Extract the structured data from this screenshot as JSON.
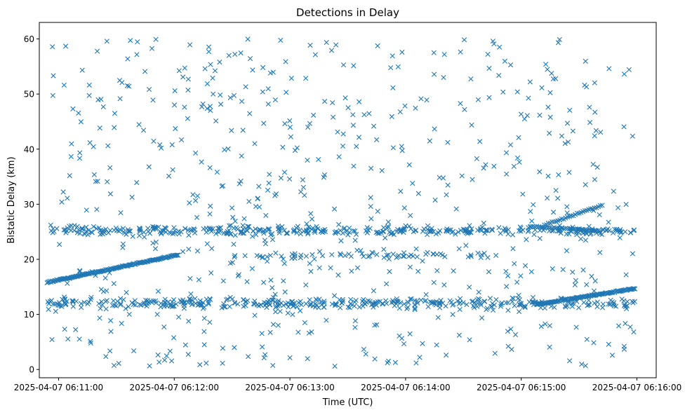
{
  "chart_data": {
    "type": "scatter",
    "title": "Detections in Delay",
    "xlabel": "Time (UTC)",
    "ylabel": "Bistatic Delay (km)",
    "marker": "x",
    "color": "#1f77b4",
    "xlim": [
      -10,
      310
    ],
    "ylim": [
      -1.5,
      63
    ],
    "x_ticks": [
      {
        "value": 0,
        "label": "2025-04-07 06:11:00"
      },
      {
        "value": 60,
        "label": "2025-04-07 06:12:00"
      },
      {
        "value": 120,
        "label": "2025-04-07 06:13:00"
      },
      {
        "value": 180,
        "label": "2025-04-07 06:14:00"
      },
      {
        "value": 240,
        "label": "2025-04-07 06:15:00"
      },
      {
        "value": 300,
        "label": "2025-04-07 06:16:00"
      }
    ],
    "y_ticks": [
      {
        "value": 0,
        "label": "0"
      },
      {
        "value": 10,
        "label": "10"
      },
      {
        "value": 20,
        "label": "20"
      },
      {
        "value": 30,
        "label": "30"
      },
      {
        "value": 40,
        "label": "40"
      },
      {
        "value": 50,
        "label": "50"
      },
      {
        "value": 60,
        "label": "60"
      }
    ],
    "x_range_seconds": [
      -6,
      299
    ],
    "tracks": [
      {
        "name": "rising track A",
        "x_start": -6,
        "x_end": 62,
        "y_start": 15.8,
        "y_end": 20.8,
        "every_s": 0.5
      },
      {
        "name": "rising track B",
        "x_start": 248,
        "x_end": 299,
        "y_start": 11.8,
        "y_end": 14.7,
        "every_s": 0.5
      },
      {
        "name": "steady track C",
        "x_start": 245,
        "x_end": 280,
        "y_start": 26.0,
        "y_end": 25.2,
        "every_s": 1
      },
      {
        "name": "rising track D",
        "x_start": 252,
        "x_end": 282,
        "y_start": 26.2,
        "y_end": 29.8,
        "every_s": 1
      }
    ],
    "bands": [
      {
        "name": "band 25 km",
        "center_km": 25.2,
        "spread_km": 1.2,
        "x_start": -6,
        "x_end": 299,
        "count": 380
      },
      {
        "name": "band 12 km",
        "center_km": 12.0,
        "spread_km": 1.4,
        "x_start": -6,
        "x_end": 299,
        "count": 380
      },
      {
        "name": "band 20.5 km",
        "center_km": 20.6,
        "spread_km": 0.8,
        "x_start": 90,
        "x_end": 230,
        "count": 60
      }
    ],
    "background": {
      "count": 620,
      "x_min": -6,
      "x_max": 299,
      "y_min": 0.5,
      "y_max": 60
    }
  }
}
